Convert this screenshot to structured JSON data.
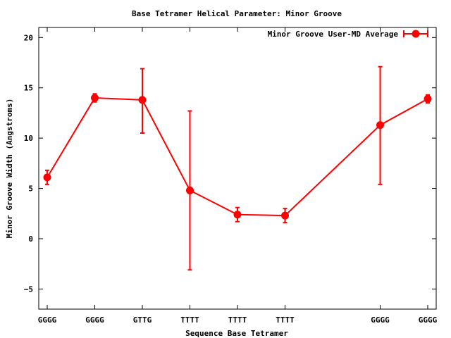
{
  "chart_data": {
    "type": "line",
    "title": "Base Tetramer Helical Parameter: Minor Groove",
    "xlabel": "Sequence Base Tetramer",
    "ylabel": "Minor Groove Width (Angstroms)",
    "ylim": [
      -7,
      21
    ],
    "y_ticks": [
      -5,
      0,
      5,
      10,
      15,
      20
    ],
    "x_index_range": [
      0,
      8
    ],
    "legend_position": "top-right",
    "grid": false,
    "series": [
      {
        "name": "Minor Groove User-MD Average",
        "color": "#ff0000",
        "points": [
          {
            "label": "GGGG",
            "index": 0,
            "y": 6.1,
            "err_low": 5.4,
            "err_high": 6.8
          },
          {
            "label": "GGGG",
            "index": 1,
            "y": 14.0,
            "err_low": 13.6,
            "err_high": 14.4
          },
          {
            "label": "GTTG",
            "index": 2,
            "y": 13.8,
            "err_low": 10.5,
            "err_high": 16.9
          },
          {
            "label": "TTTT",
            "index": 3,
            "y": 4.8,
            "err_low": -3.1,
            "err_high": 12.7
          },
          {
            "label": "TTTT",
            "index": 4,
            "y": 2.4,
            "err_low": 1.7,
            "err_high": 3.1
          },
          {
            "label": "TTTT",
            "index": 5,
            "y": 2.3,
            "err_low": 1.6,
            "err_high": 3.0
          },
          {
            "label": "GGGG",
            "index": 7,
            "y": 11.3,
            "err_low": 5.4,
            "err_high": 17.1
          },
          {
            "label": "GGGG",
            "index": 8,
            "y": 13.9,
            "err_low": 13.5,
            "err_high": 14.3
          }
        ]
      }
    ]
  }
}
